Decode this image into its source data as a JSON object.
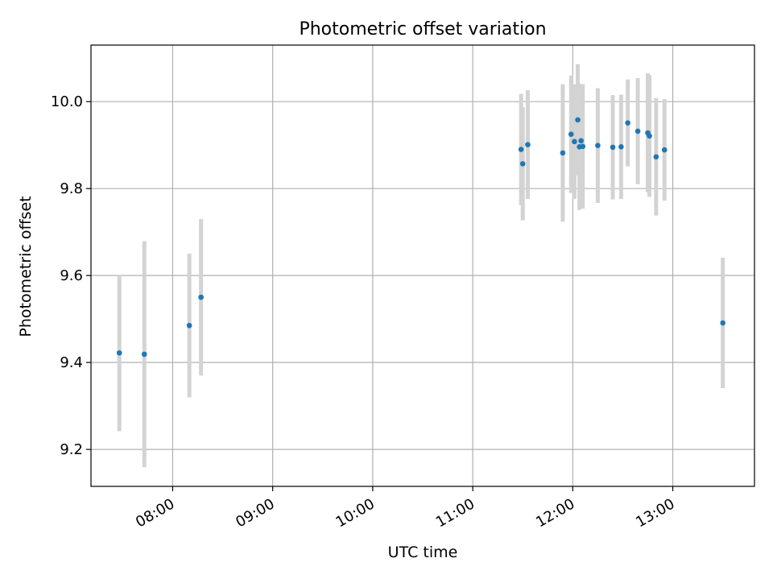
{
  "chart_data": {
    "type": "scatter",
    "title": "Photometric offset variation",
    "xlabel": "UTC time",
    "ylabel": "Photometric offset",
    "xlim": [
      "07:11",
      "13:49"
    ],
    "ylim": [
      9.115,
      10.13
    ],
    "x_ticks": [
      "08:00",
      "09:00",
      "10:00",
      "11:00",
      "12:00",
      "13:00"
    ],
    "y_ticks": [
      9.2,
      9.4,
      9.6,
      9.8,
      10.0
    ],
    "y_tick_labels": [
      "9.2",
      "9.4",
      "9.6",
      "9.8",
      "10.0"
    ],
    "grid": true,
    "errorbar_color": "#d3d3d3",
    "marker_color": "#1f77b4",
    "points": [
      {
        "x": "07:28",
        "y": 9.422,
        "err": 0.18
      },
      {
        "x": "07:43",
        "y": 9.419,
        "err": 0.26
      },
      {
        "x": "08:10",
        "y": 9.485,
        "err": 0.165
      },
      {
        "x": "08:17",
        "y": 9.55,
        "err": 0.18
      },
      {
        "x": "11:29",
        "y": 9.89,
        "err": 0.128
      },
      {
        "x": "11:30",
        "y": 9.857,
        "err": 0.13
      },
      {
        "x": "11:33",
        "y": 9.901,
        "err": 0.125
      },
      {
        "x": "11:54",
        "y": 9.882,
        "err": 0.158
      },
      {
        "x": "11:59",
        "y": 9.925,
        "err": 0.135
      },
      {
        "x": "12:01",
        "y": 9.908,
        "err": 0.132
      },
      {
        "x": "12:03",
        "y": 9.958,
        "err": 0.128
      },
      {
        "x": "12:04",
        "y": 9.896,
        "err": 0.145
      },
      {
        "x": "12:05",
        "y": 9.91,
        "err": 0.13
      },
      {
        "x": "12:06",
        "y": 9.897,
        "err": 0.143
      },
      {
        "x": "12:15",
        "y": 9.899,
        "err": 0.132
      },
      {
        "x": "12:24",
        "y": 9.895,
        "err": 0.12
      },
      {
        "x": "12:29",
        "y": 9.896,
        "err": 0.12
      },
      {
        "x": "12:33",
        "y": 9.951,
        "err": 0.1
      },
      {
        "x": "12:39",
        "y": 9.932,
        "err": 0.122
      },
      {
        "x": "12:45",
        "y": 9.928,
        "err": 0.137
      },
      {
        "x": "12:46",
        "y": 9.921,
        "err": 0.14
      },
      {
        "x": "12:50",
        "y": 9.873,
        "err": 0.135
      },
      {
        "x": "12:55",
        "y": 9.889,
        "err": 0.117
      },
      {
        "x": "13:30",
        "y": 9.491,
        "err": 0.15
      }
    ]
  }
}
